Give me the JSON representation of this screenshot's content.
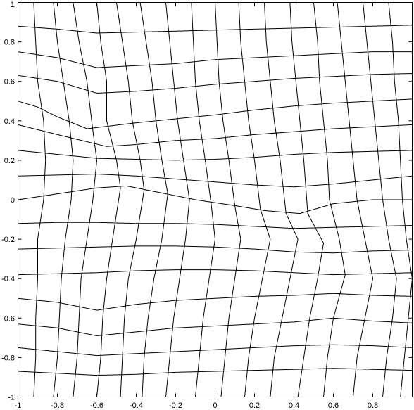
{
  "chart_data": {
    "type": "line",
    "title": "",
    "xlabel": "",
    "ylabel": "",
    "xlim": [
      -1,
      1
    ],
    "ylim": [
      -1,
      1
    ],
    "grid": false,
    "line_color": "#000000",
    "background": "#ffffff",
    "xticks": [
      -1,
      -0.8,
      -0.6,
      -0.4,
      -0.2,
      0,
      0.2,
      0.4,
      0.6,
      0.8
    ],
    "xtick_labels": [
      "-1",
      "-0.8",
      "-0.6",
      "-0.4",
      "-0.2",
      "0",
      "0.2",
      "0.4",
      "0.6",
      "0.8"
    ],
    "yticks": [
      1,
      0.8,
      0.6,
      0.4,
      0.2,
      0,
      -0.2,
      -0.4,
      -0.6,
      -0.8,
      -1
    ],
    "ytick_labels": [
      "1",
      "0.8",
      "0.6",
      "0.4",
      "0.2",
      "0",
      "-0.2",
      "-0.4",
      "-0.6",
      "-0.8",
      "-1"
    ],
    "description_of_marks": "deformed quadrilateral mesh",
    "rows": [
      {
        "x": [
          -1,
          -0.8,
          -0.6,
          -0.4,
          -0.2,
          0,
          0.2,
          0.4,
          0.6,
          0.8,
          1
        ],
        "y": [
          0.88,
          0.865,
          0.845,
          0.85,
          0.855,
          0.86,
          0.865,
          0.87,
          0.875,
          0.88,
          0.885
        ]
      },
      {
        "x": [
          -1,
          -0.8,
          -0.6,
          -0.4,
          -0.2,
          0,
          0.2,
          0.4,
          0.6,
          0.8,
          1
        ],
        "y": [
          0.75,
          0.72,
          0.67,
          0.68,
          0.69,
          0.71,
          0.72,
          0.73,
          0.74,
          0.75,
          0.75
        ]
      },
      {
        "x": [
          -1,
          -0.8,
          -0.6,
          -0.4,
          -0.2,
          0,
          0.2,
          0.4,
          0.6,
          0.8,
          1
        ],
        "y": [
          0.63,
          0.6,
          0.54,
          0.55,
          0.565,
          0.585,
          0.6,
          0.615,
          0.625,
          0.635,
          0.64
        ]
      },
      {
        "x": [
          -1,
          -0.9,
          -0.8,
          -0.65,
          -0.4,
          -0.2,
          0,
          0.2,
          0.4,
          0.6,
          0.8,
          1
        ],
        "y": [
          0.5,
          0.47,
          0.42,
          0.36,
          0.39,
          0.41,
          0.43,
          0.455,
          0.475,
          0.49,
          0.5,
          0.51
        ]
      },
      {
        "x": [
          -1,
          -0.8,
          -0.55,
          -0.4,
          -0.2,
          0,
          0.2,
          0.4,
          0.6,
          0.8,
          1
        ],
        "y": [
          0.38,
          0.33,
          0.27,
          0.28,
          0.3,
          0.31,
          0.33,
          0.345,
          0.36,
          0.37,
          0.38
        ]
      },
      {
        "x": [
          -1,
          -0.8,
          -0.6,
          -0.4,
          -0.2,
          0,
          0.2,
          0.4,
          0.6,
          0.8,
          1
        ],
        "y": [
          0.25,
          0.23,
          0.21,
          0.205,
          0.2,
          0.205,
          0.215,
          0.23,
          0.24,
          0.245,
          0.25
        ]
      },
      {
        "x": [
          -1,
          -0.8,
          -0.6,
          -0.4,
          -0.2,
          0,
          0.2,
          0.4,
          0.6,
          0.8,
          1
        ],
        "y": [
          0.12,
          0.125,
          0.13,
          0.12,
          0.105,
          0.09,
          0.075,
          0.065,
          0.08,
          0.1,
          0.12
        ]
      },
      {
        "x": [
          -1,
          -0.8,
          -0.6,
          -0.45,
          -0.3,
          -0.1,
          0.1,
          0.25,
          0.43,
          0.6,
          0.8,
          1
        ],
        "y": [
          0,
          0.03,
          0.06,
          0.07,
          0.04,
          0.0,
          -0.03,
          -0.055,
          -0.07,
          -0.02,
          0.0,
          0.0
        ]
      },
      {
        "x": [
          -1,
          -0.8,
          -0.6,
          -0.4,
          -0.2,
          0,
          0.2,
          0.4,
          0.6,
          0.8,
          1
        ],
        "y": [
          -0.12,
          -0.115,
          -0.115,
          -0.12,
          -0.12,
          -0.125,
          -0.135,
          -0.145,
          -0.14,
          -0.135,
          -0.13
        ]
      },
      {
        "x": [
          -1,
          -0.8,
          -0.6,
          -0.4,
          -0.2,
          0,
          0.2,
          0.4,
          0.6,
          0.8,
          1
        ],
        "y": [
          -0.25,
          -0.245,
          -0.24,
          -0.235,
          -0.235,
          -0.24,
          -0.25,
          -0.265,
          -0.27,
          -0.26,
          -0.255
        ]
      },
      {
        "x": [
          -1,
          -0.8,
          -0.6,
          -0.4,
          -0.2,
          0,
          0.2,
          0.4,
          0.6,
          0.8,
          1
        ],
        "y": [
          -0.38,
          -0.375,
          -0.37,
          -0.36,
          -0.355,
          -0.355,
          -0.36,
          -0.37,
          -0.38,
          -0.375,
          -0.37
        ]
      },
      {
        "x": [
          -1,
          -0.8,
          -0.6,
          -0.4,
          -0.2,
          0,
          0.2,
          0.4,
          0.6,
          0.8,
          1
        ],
        "y": [
          -0.5,
          -0.52,
          -0.56,
          -0.53,
          -0.51,
          -0.5,
          -0.49,
          -0.485,
          -0.475,
          -0.485,
          -0.49
        ]
      },
      {
        "x": [
          -1,
          -0.8,
          -0.6,
          -0.4,
          -0.2,
          0,
          0.2,
          0.4,
          0.6,
          0.8,
          1
        ],
        "y": [
          -0.63,
          -0.65,
          -0.69,
          -0.67,
          -0.65,
          -0.64,
          -0.63,
          -0.62,
          -0.6,
          -0.615,
          -0.625
        ]
      },
      {
        "x": [
          -1,
          -0.8,
          -0.6,
          -0.4,
          -0.2,
          0,
          0.2,
          0.4,
          0.6,
          0.8,
          1
        ],
        "y": [
          -0.75,
          -0.77,
          -0.79,
          -0.78,
          -0.77,
          -0.76,
          -0.75,
          -0.74,
          -0.735,
          -0.74,
          -0.75
        ]
      },
      {
        "x": [
          -1,
          -0.8,
          -0.6,
          -0.4,
          -0.2,
          0,
          0.2,
          0.4,
          0.6,
          0.8,
          1
        ],
        "y": [
          -0.87,
          -0.88,
          -0.89,
          -0.885,
          -0.875,
          -0.87,
          -0.865,
          -0.86,
          -0.855,
          -0.86,
          -0.865
        ]
      }
    ],
    "columns": [
      {
        "x": [
          -0.92,
          -0.91,
          -0.9,
          -0.87,
          -0.86,
          -0.87,
          -0.9,
          -0.9,
          -0.91,
          -0.91,
          -0.92
        ],
        "y": [
          1,
          0.8,
          0.6,
          0.4,
          0.2,
          0,
          -0.2,
          -0.4,
          -0.6,
          -0.8,
          -1
        ]
      },
      {
        "x": [
          -0.82,
          -0.8,
          -0.77,
          -0.74,
          -0.72,
          -0.73,
          -0.76,
          -0.78,
          -0.79,
          -0.8,
          -0.82
        ],
        "y": [
          1,
          0.8,
          0.6,
          0.4,
          0.2,
          0,
          -0.2,
          -0.4,
          -0.6,
          -0.8,
          -1
        ]
      },
      {
        "x": [
          -0.72,
          -0.69,
          -0.65,
          -0.62,
          -0.6,
          -0.62,
          -0.65,
          -0.68,
          -0.69,
          -0.7,
          -0.72
        ],
        "y": [
          1,
          0.8,
          0.6,
          0.35,
          0.2,
          0,
          -0.2,
          -0.4,
          -0.6,
          -0.8,
          -1
        ]
      },
      {
        "x": [
          -0.6,
          -0.58,
          -0.55,
          -0.55,
          -0.5,
          -0.48,
          -0.52,
          -0.55,
          -0.57,
          -0.58,
          -0.6
        ],
        "y": [
          1,
          0.8,
          0.6,
          0.4,
          0.2,
          0.06,
          -0.2,
          -0.4,
          -0.6,
          -0.8,
          -1
        ]
      },
      {
        "x": [
          -0.5,
          -0.47,
          -0.44,
          -0.42,
          -0.38,
          -0.36,
          -0.4,
          -0.44,
          -0.46,
          -0.47,
          -0.48
        ],
        "y": [
          1,
          0.8,
          0.6,
          0.4,
          0.2,
          0.05,
          -0.2,
          -0.4,
          -0.6,
          -0.8,
          -1
        ]
      },
      {
        "x": [
          -0.38,
          -0.35,
          -0.32,
          -0.3,
          -0.27,
          -0.24,
          -0.27,
          -0.31,
          -0.34,
          -0.36,
          -0.37
        ],
        "y": [
          1,
          0.8,
          0.6,
          0.4,
          0.2,
          0.03,
          -0.2,
          -0.4,
          -0.6,
          -0.8,
          -1
        ]
      },
      {
        "x": [
          -0.25,
          -0.23,
          -0.21,
          -0.19,
          -0.16,
          -0.13,
          -0.15,
          -0.18,
          -0.21,
          -0.23,
          -0.25
        ],
        "y": [
          1,
          0.8,
          0.6,
          0.4,
          0.2,
          0.0,
          -0.2,
          -0.4,
          -0.6,
          -0.8,
          -1
        ]
      },
      {
        "x": [
          -0.12,
          -0.11,
          -0.1,
          -0.08,
          -0.05,
          -0.02,
          0.0,
          -0.03,
          -0.06,
          -0.08,
          -0.1
        ],
        "y": [
          1,
          0.8,
          0.6,
          0.4,
          0.2,
          -0.02,
          -0.2,
          -0.4,
          -0.6,
          -0.8,
          -1
        ]
      },
      {
        "x": [
          0.0,
          0.01,
          0.02,
          0.04,
          0.07,
          0.1,
          0.13,
          0.1,
          0.07,
          0.05,
          0.03
        ],
        "y": [
          1,
          0.8,
          0.6,
          0.4,
          0.2,
          -0.03,
          -0.2,
          -0.4,
          -0.6,
          -0.8,
          -1
        ]
      },
      {
        "x": [
          0.12,
          0.13,
          0.15,
          0.17,
          0.2,
          0.23,
          0.28,
          0.24,
          0.2,
          0.17,
          0.15
        ],
        "y": [
          1,
          0.8,
          0.6,
          0.4,
          0.2,
          -0.05,
          -0.2,
          -0.4,
          -0.6,
          -0.8,
          -1
        ]
      },
      {
        "x": [
          0.25,
          0.26,
          0.28,
          0.3,
          0.33,
          0.36,
          0.42,
          0.38,
          0.34,
          0.3,
          0.28
        ],
        "y": [
          1,
          0.8,
          0.6,
          0.4,
          0.2,
          -0.07,
          -0.2,
          -0.4,
          -0.6,
          -0.8,
          -1
        ]
      },
      {
        "x": [
          0.38,
          0.39,
          0.41,
          0.43,
          0.45,
          0.47,
          0.55,
          0.52,
          0.48,
          0.45,
          0.42
        ],
        "y": [
          1,
          0.8,
          0.6,
          0.4,
          0.2,
          -0.07,
          -0.22,
          -0.4,
          -0.6,
          -0.8,
          -1
        ]
      },
      {
        "x": [
          0.5,
          0.52,
          0.53,
          0.55,
          0.57,
          0.58,
          0.63,
          0.66,
          0.6,
          0.57,
          0.55
        ],
        "y": [
          1,
          0.8,
          0.6,
          0.4,
          0.2,
          0.0,
          -0.2,
          -0.38,
          -0.6,
          -0.8,
          -1
        ]
      },
      {
        "x": [
          0.62,
          0.64,
          0.66,
          0.68,
          0.7,
          0.72,
          0.76,
          0.8,
          0.76,
          0.72,
          0.7
        ],
        "y": [
          1,
          0.8,
          0.6,
          0.4,
          0.2,
          0.0,
          -0.2,
          -0.4,
          -0.6,
          -0.8,
          -1
        ]
      },
      {
        "x": [
          0.75,
          0.77,
          0.79,
          0.81,
          0.83,
          0.85,
          0.88,
          0.92,
          0.9,
          0.87,
          0.85
        ],
        "y": [
          1,
          0.8,
          0.6,
          0.4,
          0.2,
          0.0,
          -0.2,
          -0.4,
          -0.6,
          -0.8,
          -1
        ]
      },
      {
        "x": [
          0.88,
          0.9,
          0.91,
          0.93,
          0.94,
          0.95,
          0.97,
          1.0,
          0.98,
          0.96,
          0.94
        ],
        "y": [
          1,
          0.8,
          0.6,
          0.4,
          0.2,
          0.0,
          -0.2,
          -0.4,
          -0.6,
          -0.8,
          -1
        ]
      }
    ]
  }
}
